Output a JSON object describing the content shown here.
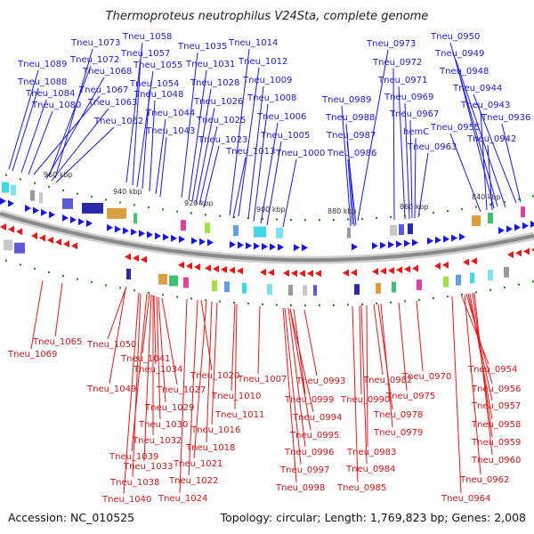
{
  "title": "Thermoproteus neutrophilus V24Sta, complete genome",
  "footer": {
    "accession": "Accession: NC_010525",
    "summary": "Topology: circular; Length: 1,769,823 bp; Genes: 2,008"
  },
  "kbp_ticks": [
    {
      "text": "960 kbp"
    },
    {
      "text": "940 kbp"
    },
    {
      "text": "920 kbp"
    },
    {
      "text": "900 kbp"
    },
    {
      "text": "880 kbp"
    },
    {
      "text": "860 kbp"
    },
    {
      "text": "840 kbp"
    }
  ],
  "top_labels": [
    {
      "text": "Tneu_1073"
    },
    {
      "text": "Tneu_1058"
    },
    {
      "text": "Tneu_1057"
    },
    {
      "text": "Tneu_1072"
    },
    {
      "text": "Tneu_1089"
    },
    {
      "text": "Tneu_1068"
    },
    {
      "text": "Tneu_1055"
    },
    {
      "text": "Tneu_1035"
    },
    {
      "text": "Tneu_1014"
    },
    {
      "text": "Tneu_1031"
    },
    {
      "text": "Tneu_1012"
    },
    {
      "text": "Tneu_1088"
    },
    {
      "text": "Tneu_1067"
    },
    {
      "text": "Tneu_1054"
    },
    {
      "text": "Tneu_1028"
    },
    {
      "text": "Tneu_1009"
    },
    {
      "text": "Tneu_1084"
    },
    {
      "text": "Tneu_1048"
    },
    {
      "text": "Tneu_1063"
    },
    {
      "text": "Tneu_1026"
    },
    {
      "text": "Tneu_1008"
    },
    {
      "text": "Tneu_1080"
    },
    {
      "text": "Tneu_1044"
    },
    {
      "text": "Tneu_1062"
    },
    {
      "text": "Tneu_1025"
    },
    {
      "text": "Tneu_1006"
    },
    {
      "text": "Tneu_1043"
    },
    {
      "text": "Tneu_1005"
    },
    {
      "text": "Tneu_1023"
    },
    {
      "text": "Tneu_1013"
    },
    {
      "text": "Tneu_1000"
    },
    {
      "text": "Tneu_0973"
    },
    {
      "text": "Tneu_0950"
    },
    {
      "text": "Tneu_0949"
    },
    {
      "text": "Tneu_0972"
    },
    {
      "text": "Tneu_0948"
    },
    {
      "text": "Tneu_0971"
    },
    {
      "text": "Tneu_0944"
    },
    {
      "text": "Tneu_0969"
    },
    {
      "text": "Tneu_0989"
    },
    {
      "text": "Tneu_0943"
    },
    {
      "text": "Tneu_0967"
    },
    {
      "text": "Tneu_0988"
    },
    {
      "text": "Tneu_0936"
    },
    {
      "text": "Tneu_0955"
    },
    {
      "text": "hemC"
    },
    {
      "text": "Tneu_0987"
    },
    {
      "text": "Tneu_0942"
    },
    {
      "text": "Tneu_0963"
    },
    {
      "text": "Tneu_0986"
    }
  ],
  "bottom_labels": [
    {
      "text": "Tneu_1065"
    },
    {
      "text": "Tneu_1069"
    },
    {
      "text": "Tneu_1050"
    },
    {
      "text": "Tneu_1041"
    },
    {
      "text": "Tneu_1034"
    },
    {
      "text": "Tneu_1049"
    },
    {
      "text": "Tneu_1027"
    },
    {
      "text": "Tneu_1020"
    },
    {
      "text": "Tneu_1007"
    },
    {
      "text": "Tneu_1010"
    },
    {
      "text": "Tneu_1029"
    },
    {
      "text": "Tneu_1011"
    },
    {
      "text": "Tneu_1030"
    },
    {
      "text": "Tneu_1016"
    },
    {
      "text": "Tneu_1032"
    },
    {
      "text": "Tneu_1018"
    },
    {
      "text": "Tneu_1039"
    },
    {
      "text": "Tneu_1033"
    },
    {
      "text": "Tneu_1021"
    },
    {
      "text": "Tneu_1038"
    },
    {
      "text": "Tneu_1022"
    },
    {
      "text": "Tneu_1040"
    },
    {
      "text": "Tneu_1024"
    },
    {
      "text": "Tneu_0993"
    },
    {
      "text": "Tneu_0999"
    },
    {
      "text": "Tneu_0994"
    },
    {
      "text": "Tneu_0995"
    },
    {
      "text": "Tneu_0996"
    },
    {
      "text": "Tneu_0997"
    },
    {
      "text": "Tneu_0998"
    },
    {
      "text": "Tneu_0982"
    },
    {
      "text": "Tneu_0990"
    },
    {
      "text": "Tneu_0978"
    },
    {
      "text": "Tneu_0979"
    },
    {
      "text": "Tneu_0983"
    },
    {
      "text": "Tneu_0984"
    },
    {
      "text": "Tneu_0985"
    },
    {
      "text": "Tneu_0970"
    },
    {
      "text": "Tneu_0975"
    },
    {
      "text": "Tneu_0954"
    },
    {
      "text": "Tneu_0956"
    },
    {
      "text": "Tneu_0957"
    },
    {
      "text": "Tneu_0958"
    },
    {
      "text": "Tneu_0959"
    },
    {
      "text": "Tneu_0960"
    },
    {
      "text": "Tneu_0962"
    },
    {
      "text": "Tneu_0964"
    }
  ],
  "colors": {
    "forward": "#1515ee",
    "reverse": "#ee1515",
    "backbone": "#888888",
    "tick": "#118811"
  }
}
